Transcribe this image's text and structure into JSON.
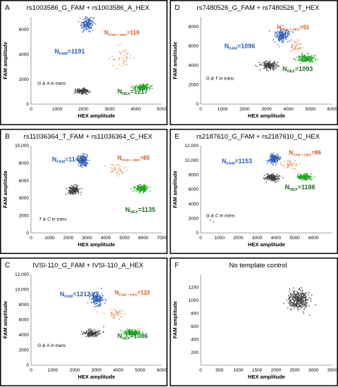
{
  "chart_data": [
    {
      "type": "scatter",
      "panel": "A",
      "title": "rs1003586_G_FAM + rs1003586_A_HEX",
      "xlabel": "HEX amplitude",
      "ylabel": "FAM amplitude",
      "xlim": [
        0,
        5000
      ],
      "ylim": [
        0,
        7000
      ],
      "xticks": [
        0,
        1000,
        2000,
        3000,
        4000,
        5000
      ],
      "yticks": [
        0,
        2000,
        4000,
        6000
      ],
      "annotation": "G & A in trans",
      "clusters": [
        {
          "color": "#2f5fb5",
          "cx": 2150,
          "cy": 6400,
          "sx": 110,
          "sy": 260,
          "n": 160
        },
        {
          "color": "#ef8f55",
          "cx": 3500,
          "cy": 3800,
          "sx": 220,
          "sy": 420,
          "n": 40
        },
        {
          "color": "#1aa51a",
          "cx": 4250,
          "cy": 1350,
          "sx": 150,
          "sy": 110,
          "n": 130
        },
        {
          "color": "#3f3f3f",
          "cx": 1950,
          "cy": 1050,
          "sx": 140,
          "sy": 110,
          "n": 130
        }
      ],
      "labels": [
        {
          "prefix": "N",
          "sub": "FAM",
          "value": "=1191",
          "color": "#2f5fb5",
          "size": 9
        },
        {
          "prefix": "N",
          "sub": "FAM + HEX",
          "value": "=119",
          "color": "#d9541f",
          "size": 8
        },
        {
          "prefix": "N",
          "sub": "HEX",
          "value": "=1217",
          "color": "#1f6b1f",
          "size": 9
        }
      ]
    },
    {
      "type": "scatter",
      "panel": "D",
      "title": "rs7480526_G_FAM + rs7480526_T_HEX",
      "xlabel": "HEX amplitude",
      "ylabel": "FAM amplitude",
      "xlim": [
        0,
        6000
      ],
      "ylim": [
        0,
        9000
      ],
      "xticks": [
        0,
        1000,
        2000,
        3000,
        4000,
        5000,
        6000
      ],
      "yticks": [
        0,
        2000,
        4000,
        6000,
        8000
      ],
      "annotation": "G & T in trans",
      "clusters": [
        {
          "color": "#2f5fb5",
          "cx": 3700,
          "cy": 7100,
          "sx": 160,
          "sy": 320,
          "n": 170
        },
        {
          "color": "#ef8f55",
          "cx": 4300,
          "cy": 6000,
          "sx": 180,
          "sy": 300,
          "n": 40
        },
        {
          "color": "#1aa51a",
          "cx": 4800,
          "cy": 4700,
          "sx": 200,
          "sy": 200,
          "n": 150
        },
        {
          "color": "#3f3f3f",
          "cx": 3100,
          "cy": 4000,
          "sx": 200,
          "sy": 230,
          "n": 150
        }
      ],
      "labels": [
        {
          "prefix": "N",
          "sub": "FAM",
          "value": "=1096",
          "color": "#2f5fb5",
          "size": 9
        },
        {
          "prefix": "N",
          "sub": "FAM + HEX",
          "value": "=91",
          "color": "#d9541f",
          "size": 8
        },
        {
          "prefix": "N",
          "sub": "HEX",
          "value": "=1093",
          "color": "#1f6b1f",
          "size": 9
        }
      ]
    },
    {
      "type": "scatter",
      "panel": "B",
      "title": "rs11036364_T_FAM + rs11036364_C_HEX",
      "xlabel": "HEX amplitude",
      "ylabel": "FAM amplitude",
      "xlim": [
        0,
        7000
      ],
      "ylim": [
        0,
        10000
      ],
      "xticks": [
        0,
        1000,
        2000,
        3000,
        4000,
        5000,
        6000,
        7000
      ],
      "yticks": [
        0,
        2000,
        4000,
        6000,
        8000,
        10000
      ],
      "yticklabels": [
        "0",
        "2000",
        "4000",
        "6000",
        "8000",
        "10,000"
      ],
      "annotation": "T & C in trans",
      "clusters": [
        {
          "color": "#2f5fb5",
          "cx": 2800,
          "cy": 8300,
          "sx": 130,
          "sy": 320,
          "n": 170
        },
        {
          "color": "#ef8f55",
          "cx": 4600,
          "cy": 7200,
          "sx": 260,
          "sy": 350,
          "n": 40
        },
        {
          "color": "#1aa51a",
          "cx": 5900,
          "cy": 5100,
          "sx": 170,
          "sy": 180,
          "n": 140
        },
        {
          "color": "#3f3f3f",
          "cx": 2300,
          "cy": 4900,
          "sx": 160,
          "sy": 230,
          "n": 150
        }
      ],
      "labels": [
        {
          "prefix": "N",
          "sub": "FAM",
          "value": "=1144",
          "color": "#2f5fb5",
          "size": 9
        },
        {
          "prefix": "N",
          "sub": "FAM + HEX",
          "value": "=85",
          "color": "#d9541f",
          "size": 8
        },
        {
          "prefix": "N",
          "sub": "HEX",
          "value": "=1135",
          "color": "#1f6b1f",
          "size": 9
        }
      ]
    },
    {
      "type": "scatter",
      "panel": "E",
      "title": "rs2187610_G_FAM + rs2187610_C_HEX",
      "xlabel": "HEX amplitude",
      "ylabel": "FAM amplitude",
      "xlim": [
        0,
        7000
      ],
      "ylim": [
        0,
        12000
      ],
      "xticks": [
        0,
        1000,
        2000,
        3000,
        4000,
        5000,
        6000
      ],
      "yticks": [
        0,
        2000,
        4000,
        6000,
        8000,
        10000,
        12000
      ],
      "yticklabels": [
        "0",
        "2000",
        "4000",
        "6000",
        "8000",
        "10,000",
        "12,000"
      ],
      "annotation": "G & C in trans",
      "clusters": [
        {
          "color": "#2f5fb5",
          "cx": 3900,
          "cy": 10200,
          "sx": 160,
          "sy": 320,
          "n": 170
        },
        {
          "color": "#ef8f55",
          "cx": 4800,
          "cy": 9300,
          "sx": 200,
          "sy": 300,
          "n": 40
        },
        {
          "color": "#1aa51a",
          "cx": 5500,
          "cy": 7700,
          "sx": 180,
          "sy": 220,
          "n": 150
        },
        {
          "color": "#3f3f3f",
          "cx": 3800,
          "cy": 7600,
          "sx": 180,
          "sy": 230,
          "n": 150
        }
      ],
      "labels": [
        {
          "prefix": "N",
          "sub": "FAM",
          "value": "=1153",
          "color": "#2f5fb5",
          "size": 9
        },
        {
          "prefix": "N",
          "sub": "FAM + HEX",
          "value": "=86",
          "color": "#d9541f",
          "size": 8
        },
        {
          "prefix": "N",
          "sub": "HEX",
          "value": "=1188",
          "color": "#1f6b1f",
          "size": 9
        }
      ]
    },
    {
      "type": "scatter",
      "panel": "C",
      "title": "IVSI-110_G_FAM + IVSI-110_A_HEX",
      "xlabel": "HEX amplitude",
      "ylabel": "FAM amplitude",
      "xlim": [
        0,
        6000
      ],
      "ylim": [
        0,
        12000
      ],
      "xticks": [
        0,
        1000,
        2000,
        3000,
        4000,
        5000,
        6000
      ],
      "yticks": [
        0,
        2000,
        4000,
        6000,
        8000,
        10000,
        12000
      ],
      "yticklabels": [
        "0",
        "2000",
        "4000",
        "6000",
        "8000",
        "10,000",
        "12,000"
      ],
      "annotation": "G & A in trans",
      "clusters": [
        {
          "color": "#2f5fb5",
          "cx": 3000,
          "cy": 8800,
          "sx": 130,
          "sy": 450,
          "n": 170
        },
        {
          "color": "#ef8f55",
          "cx": 3900,
          "cy": 6800,
          "sx": 200,
          "sy": 400,
          "n": 40
        },
        {
          "color": "#1aa51a",
          "cx": 4600,
          "cy": 4300,
          "sx": 200,
          "sy": 200,
          "n": 150
        },
        {
          "color": "#3f3f3f",
          "cx": 2800,
          "cy": 4200,
          "sx": 180,
          "sy": 230,
          "n": 150
        }
      ],
      "labels": [
        {
          "prefix": "N",
          "sub": "FAM",
          "value": "=1212",
          "color": "#2f5fb5",
          "size": 9
        },
        {
          "prefix": "N",
          "sub": "FAM + HEX",
          "value": "=122",
          "color": "#d9541f",
          "size": 8
        },
        {
          "prefix": "N",
          "sub": "HEX",
          "value": "=1086",
          "color": "#1f6b1f",
          "size": 9
        }
      ]
    },
    {
      "type": "scatter",
      "panel": "F",
      "title": "No template control",
      "xlabel": "HEX amplitude",
      "ylabel": "FAM amplitude",
      "xlim": [
        0,
        3500
      ],
      "ylim": [
        0,
        1400
      ],
      "xticks": [
        0,
        500,
        1000,
        1500,
        2000,
        2500,
        3000,
        3500
      ],
      "yticks": [
        200,
        400,
        600,
        800,
        1000,
        1200
      ],
      "annotation": "",
      "clusters": [
        {
          "color": "#3f3f3f",
          "cx": 2600,
          "cy": 1010,
          "sx": 150,
          "sy": 70,
          "n": 330
        }
      ],
      "labels": []
    }
  ]
}
